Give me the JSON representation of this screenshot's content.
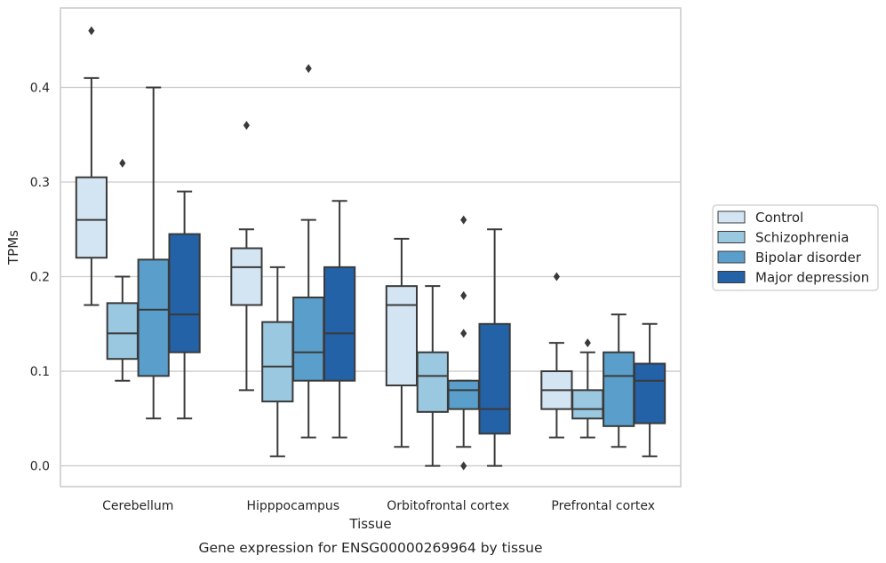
{
  "chart_data": {
    "type": "box",
    "caption": "Gene expression for ENSG00000269964 by tissue",
    "xlabel": "Tissue",
    "ylabel": "TPMs",
    "ylim": [
      -0.022,
      0.484
    ],
    "yticks": [
      0.0,
      0.1,
      0.2,
      0.3,
      0.4
    ],
    "ytick_labels": [
      "0.0",
      "0.1",
      "0.2",
      "0.3",
      "0.4"
    ],
    "grid": "horizontal",
    "legend_position": "right",
    "categories": [
      "Cerebellum",
      "Hipppocampus",
      "Orbitofrontal cortex",
      "Prefrontal cortex"
    ],
    "series": [
      {
        "name": "Control",
        "color": "#d3e4f3",
        "boxes": [
          {
            "whislo": 0.17,
            "q1": 0.22,
            "med": 0.26,
            "q3": 0.305,
            "whishi": 0.41,
            "fliers": [
              0.46
            ]
          },
          {
            "whislo": 0.08,
            "q1": 0.17,
            "med": 0.21,
            "q3": 0.23,
            "whishi": 0.25,
            "fliers": [
              0.36
            ]
          },
          {
            "whislo": 0.02,
            "q1": 0.085,
            "med": 0.17,
            "q3": 0.19,
            "whishi": 0.24,
            "fliers": []
          },
          {
            "whislo": 0.03,
            "q1": 0.06,
            "med": 0.08,
            "q3": 0.1,
            "whishi": 0.13,
            "fliers": [
              0.2
            ]
          }
        ]
      },
      {
        "name": "Schizophrenia",
        "color": "#9ac8e0",
        "boxes": [
          {
            "whislo": 0.09,
            "q1": 0.113,
            "med": 0.14,
            "q3": 0.172,
            "whishi": 0.2,
            "fliers": [
              0.32
            ]
          },
          {
            "whislo": 0.01,
            "q1": 0.068,
            "med": 0.105,
            "q3": 0.152,
            "whishi": 0.21,
            "fliers": []
          },
          {
            "whislo": 0.0,
            "q1": 0.057,
            "med": 0.095,
            "q3": 0.12,
            "whishi": 0.19,
            "fliers": []
          },
          {
            "whislo": 0.03,
            "q1": 0.05,
            "med": 0.06,
            "q3": 0.08,
            "whishi": 0.12,
            "fliers": [
              0.13
            ]
          }
        ]
      },
      {
        "name": "Bipolar disorder",
        "color": "#5a9fcb",
        "boxes": [
          {
            "whislo": 0.05,
            "q1": 0.095,
            "med": 0.165,
            "q3": 0.218,
            "whishi": 0.4,
            "fliers": []
          },
          {
            "whislo": 0.03,
            "q1": 0.09,
            "med": 0.12,
            "q3": 0.178,
            "whishi": 0.26,
            "fliers": [
              0.42
            ]
          },
          {
            "whislo": 0.02,
            "q1": 0.06,
            "med": 0.08,
            "q3": 0.09,
            "whishi": 0.09,
            "fliers": [
              0.26,
              0.18,
              0.14,
              0.0
            ]
          },
          {
            "whislo": 0.02,
            "q1": 0.042,
            "med": 0.095,
            "q3": 0.12,
            "whishi": 0.16,
            "fliers": []
          }
        ]
      },
      {
        "name": "Major depression",
        "color": "#2462a8",
        "boxes": [
          {
            "whislo": 0.05,
            "q1": 0.12,
            "med": 0.16,
            "q3": 0.245,
            "whishi": 0.29,
            "fliers": []
          },
          {
            "whislo": 0.03,
            "q1": 0.09,
            "med": 0.14,
            "q3": 0.21,
            "whishi": 0.28,
            "fliers": []
          },
          {
            "whislo": 0.0,
            "q1": 0.034,
            "med": 0.06,
            "q3": 0.15,
            "whishi": 0.25,
            "fliers": []
          },
          {
            "whislo": 0.01,
            "q1": 0.045,
            "med": 0.09,
            "q3": 0.108,
            "whishi": 0.15,
            "fliers": []
          }
        ]
      }
    ]
  }
}
